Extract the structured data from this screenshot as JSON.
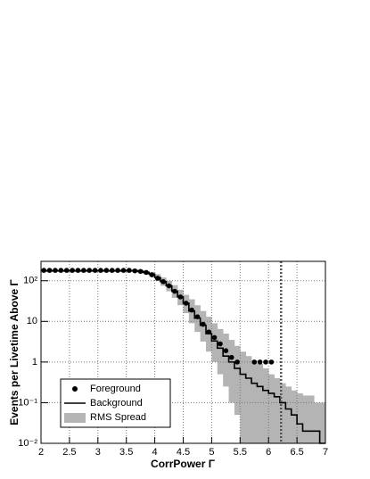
{
  "chart_data": {
    "type": "hist_scatter",
    "xlabel": "CorrPower Γ",
    "ylabel": "Events per Livetime Above Γ",
    "xlim": [
      2,
      7
    ],
    "xticks": [
      2,
      2.5,
      3,
      3.5,
      4,
      4.5,
      5,
      5.5,
      6,
      6.5,
      7
    ],
    "ylim": [
      0.01,
      300
    ],
    "log_y": true,
    "grid": true,
    "yticks": [
      {
        "value": 0.01,
        "label": "10⁻²"
      },
      {
        "value": 0.1,
        "label": "10⁻¹"
      },
      1,
      10,
      {
        "value": 100,
        "label": "10²"
      }
    ],
    "legend": "lower left",
    "vline": 6.22,
    "bins": [
      2,
      2.1,
      2.2,
      2.3,
      2.4,
      2.5,
      2.6,
      2.7,
      2.8,
      2.9,
      3,
      3.1,
      3.2,
      3.3,
      3.4,
      3.5,
      3.6,
      3.7,
      3.8,
      3.9,
      4,
      4.1,
      4.2,
      4.3,
      4.4,
      4.5,
      4.6,
      4.7,
      4.8,
      4.9,
      5,
      5.1,
      5.2,
      5.3,
      5.4,
      5.5,
      5.6,
      5.7,
      5.8,
      5.9,
      6,
      6.1,
      6.2,
      6.3,
      6.4,
      6.5,
      6.6,
      6.7,
      6.8,
      6.9,
      7
    ],
    "series": [
      {
        "name": "Foreground",
        "color": "#000000",
        "x": [
          2.05,
          2.15,
          2.25,
          2.35,
          2.45,
          2.55,
          2.65,
          2.75,
          2.85,
          2.95,
          3.05,
          3.15,
          3.25,
          3.35,
          3.45,
          3.55,
          3.65,
          3.75,
          3.85,
          3.95,
          4.05,
          4.15,
          4.25,
          4.35,
          4.45,
          4.55,
          4.65,
          4.75,
          4.85,
          4.95,
          5.05,
          5.15,
          5.25,
          5.35,
          5.45,
          5.75,
          5.85,
          5.95,
          6.05
        ],
        "values": [
          180,
          180,
          180,
          180,
          180,
          180,
          180,
          180,
          180,
          180,
          180,
          180,
          180,
          180,
          180,
          180,
          175,
          170,
          160,
          140,
          115,
          95,
          75,
          55,
          40,
          28,
          19,
          13,
          8.5,
          5.5,
          4,
          2.8,
          1.9,
          1.3,
          1.0,
          1,
          1,
          1,
          1
        ]
      },
      {
        "name": "Background",
        "color": "#000000",
        "values": [
          175,
          175,
          175,
          175,
          175,
          175,
          175,
          175,
          175,
          175,
          175,
          175,
          175,
          175,
          175,
          175,
          175,
          170,
          160,
          145,
          120,
          95,
          75,
          55,
          40,
          28,
          18,
          12,
          8,
          5,
          3.3,
          2.2,
          1.4,
          1.0,
          0.7,
          0.5,
          0.4,
          0.3,
          0.25,
          0.2,
          0.17,
          0.14,
          0.1,
          0.07,
          0.05,
          0.03,
          0.02,
          0.02,
          0.02,
          0.01
        ]
      },
      {
        "name": "RMS Spread",
        "color": "#b4b4b4",
        "low": [
          165,
          165,
          165,
          165,
          165,
          165,
          165,
          165,
          165,
          165,
          165,
          165,
          165,
          165,
          165,
          165,
          165,
          155,
          145,
          125,
          100,
          75,
          55,
          38,
          25,
          16,
          9,
          5.5,
          3.2,
          1.8,
          1.0,
          0.5,
          0.25,
          0.1,
          0.05,
          0.01,
          0.01,
          0.01,
          0.01,
          0.01,
          0.01,
          0.01,
          0.01,
          0.01,
          0.01,
          0.01,
          0.01,
          0.01,
          0.01,
          0.01
        ],
        "high": [
          190,
          190,
          190,
          190,
          190,
          190,
          190,
          190,
          190,
          190,
          190,
          190,
          190,
          190,
          190,
          190,
          190,
          185,
          175,
          165,
          145,
          120,
          100,
          78,
          60,
          45,
          35,
          25,
          18,
          13,
          9,
          6.5,
          5,
          3.5,
          2.5,
          1.8,
          1.4,
          1.1,
          0.9,
          0.7,
          0.5,
          0.4,
          0.3,
          0.25,
          0.2,
          0.17,
          0.15,
          0.15,
          0.1,
          0.1
        ]
      }
    ]
  }
}
